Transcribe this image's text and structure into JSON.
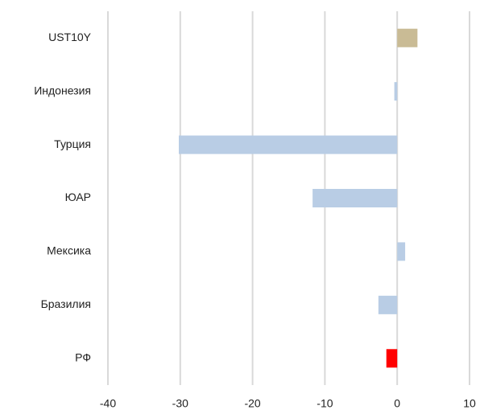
{
  "chart_data": {
    "type": "hbar",
    "categories": [
      "UST10Y",
      "Индонезия",
      "Турция",
      "ЮАР",
      "Мексика",
      "Бразилия",
      "РФ"
    ],
    "values": [
      2.8,
      -0.4,
      -30.2,
      -11.7,
      1.1,
      -2.6,
      -1.5
    ],
    "colors": [
      "#c9bb95",
      "#b9cde5",
      "#b9cde5",
      "#b9cde5",
      "#b9cde5",
      "#b9cde5",
      "#ff0000"
    ],
    "xlim": [
      -40,
      10
    ],
    "xticks": [
      -40,
      -30,
      -20,
      -10,
      0,
      10
    ],
    "grid": true
  }
}
